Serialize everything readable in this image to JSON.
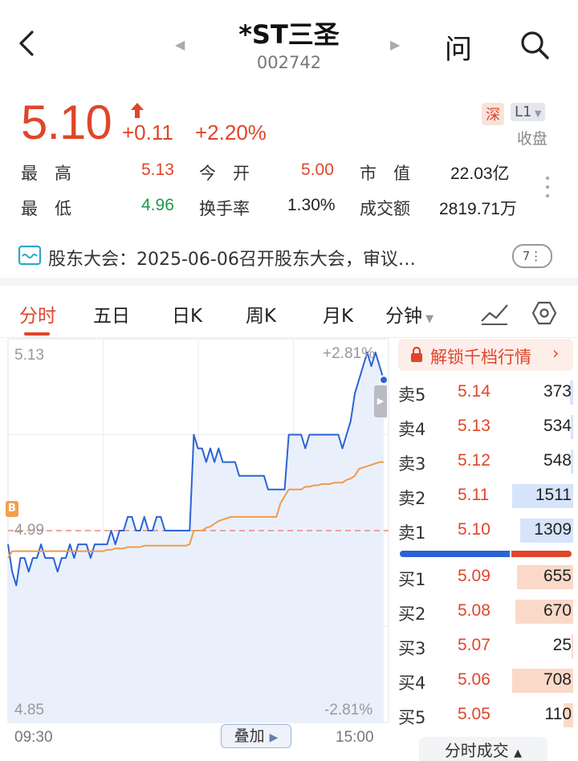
{
  "header": {
    "title": "*ST三圣",
    "code": "002742",
    "back_icon": "chevron-left-icon",
    "ask_label": "问",
    "search_icon": "search-icon"
  },
  "quote": {
    "price": "5.10",
    "change": "+0.11",
    "change_pct": "+2.20%",
    "exchange_badge": "深",
    "level_badge": "L1",
    "status": "收盘",
    "high_label": "最　高",
    "high": "5.13",
    "open_label": "今　开",
    "open": "5.00",
    "mktcap_label": "市　值",
    "mktcap": "22.03亿",
    "low_label": "最　低",
    "low": "4.96",
    "turnover_label": "换手率",
    "turnover": "1.30%",
    "amount_label": "成交额",
    "amount": "2819.71万"
  },
  "notice": {
    "text": "股东大会：2025-06-06召开股东大会，审议…",
    "count": "7"
  },
  "tabs": [
    "分时",
    "五日",
    "日K",
    "周K",
    "月K",
    "分钟"
  ],
  "active_tab": 0,
  "chart_data": {
    "type": "line",
    "y_left_ticks": [
      "5.13",
      "4.99",
      "4.85"
    ],
    "y_right_ticks": [
      "+2.81%",
      "-2.81%"
    ],
    "x_ticks": [
      "09:30",
      "15:00"
    ],
    "ylim": [
      4.85,
      5.13
    ],
    "prev_close": 4.99,
    "marker_label": "B",
    "overlay_label": "叠加",
    "series": [
      {
        "color": "#2a63d4",
        "values": [
          4.98,
          4.96,
          4.95,
          4.97,
          4.97,
          4.96,
          4.97,
          4.97,
          4.98,
          4.97,
          4.97,
          4.97,
          4.96,
          4.97,
          4.97,
          4.98,
          4.97,
          4.98,
          4.98,
          4.98,
          4.97,
          4.98,
          4.98,
          4.98,
          4.98,
          4.99,
          4.98,
          4.99,
          4.99,
          5.0,
          5.0,
          4.99,
          4.99,
          5.0,
          4.99,
          4.99,
          5.0,
          5.0,
          4.99,
          4.99,
          4.99,
          4.99,
          4.99,
          4.99,
          4.99,
          5.06,
          5.05,
          5.05,
          5.04,
          5.05,
          5.04,
          5.05,
          5.04,
          5.04,
          5.04,
          5.04,
          5.03,
          5.03,
          5.03,
          5.03,
          5.03,
          5.03,
          5.03,
          5.02,
          5.02,
          5.02,
          5.02,
          5.02,
          5.06,
          5.06,
          5.06,
          5.06,
          5.05,
          5.06,
          5.06,
          5.06,
          5.06,
          5.06,
          5.06,
          5.06,
          5.06,
          5.05,
          5.06,
          5.07,
          5.09,
          5.1,
          5.11,
          5.12,
          5.11,
          5.12,
          5.11,
          5.1
        ]
      },
      {
        "color": "#f29a4a",
        "values": [
          4.97,
          4.975,
          4.975,
          4.975,
          4.975,
          4.975,
          4.975,
          4.975,
          4.975,
          4.975,
          4.975,
          4.975,
          4.975,
          4.975,
          4.975,
          4.975,
          4.975,
          4.975,
          4.975,
          4.975,
          4.975,
          4.975,
          4.975,
          4.975,
          4.976,
          4.976,
          4.977,
          4.977,
          4.977,
          4.978,
          4.978,
          4.978,
          4.978,
          4.979,
          4.979,
          4.979,
          4.979,
          4.979,
          4.979,
          4.979,
          4.979,
          4.979,
          4.979,
          4.979,
          4.98,
          4.99,
          4.99,
          4.99,
          4.992,
          4.993,
          4.995,
          4.997,
          4.998,
          4.999,
          5.0,
          5.0,
          5.0,
          5.0,
          5.0,
          5.0,
          5.0,
          5.0,
          5.0,
          5.0,
          5.0,
          5.0,
          5.01,
          5.015,
          5.02,
          5.02,
          5.02,
          5.02,
          5.022,
          5.022,
          5.023,
          5.023,
          5.024,
          5.024,
          5.024,
          5.025,
          5.025,
          5.025,
          5.027,
          5.028,
          5.03,
          5.035,
          5.036,
          5.037,
          5.038,
          5.039,
          5.04,
          5.04
        ]
      }
    ]
  },
  "orderbook": {
    "unlock_label": "解锁千档行情",
    "asks": [
      {
        "label": "卖5",
        "price": "5.14",
        "volume": "373",
        "bar": 0.05
      },
      {
        "label": "卖4",
        "price": "5.13",
        "volume": "534",
        "bar": 0.04
      },
      {
        "label": "卖3",
        "price": "5.12",
        "volume": "548",
        "bar": 0.04
      },
      {
        "label": "卖2",
        "price": "5.11",
        "volume": "1511",
        "bar": 0.95
      },
      {
        "label": "卖1",
        "price": "5.10",
        "volume": "1309",
        "bar": 0.82
      }
    ],
    "bids": [
      {
        "label": "买1",
        "price": "5.09",
        "volume": "655",
        "bar": 0.88
      },
      {
        "label": "买2",
        "price": "5.08",
        "volume": "670",
        "bar": 0.9
      },
      {
        "label": "买3",
        "price": "5.07",
        "volume": "25",
        "bar": 0.02
      },
      {
        "label": "买4",
        "price": "5.06",
        "volume": "708",
        "bar": 0.95
      },
      {
        "label": "买5",
        "price": "5.05",
        "volume": "110",
        "bar": 0.15
      }
    ],
    "buy_ratio": 0.64,
    "footer_label": "分时成交"
  },
  "colors": {
    "up": "#e0452a",
    "down": "#1d9a4c",
    "ask_bar": "#d6e4fb",
    "bid_bar": "#fbd9c8",
    "line": "#2a63d4",
    "avg": "#f29a4a"
  }
}
